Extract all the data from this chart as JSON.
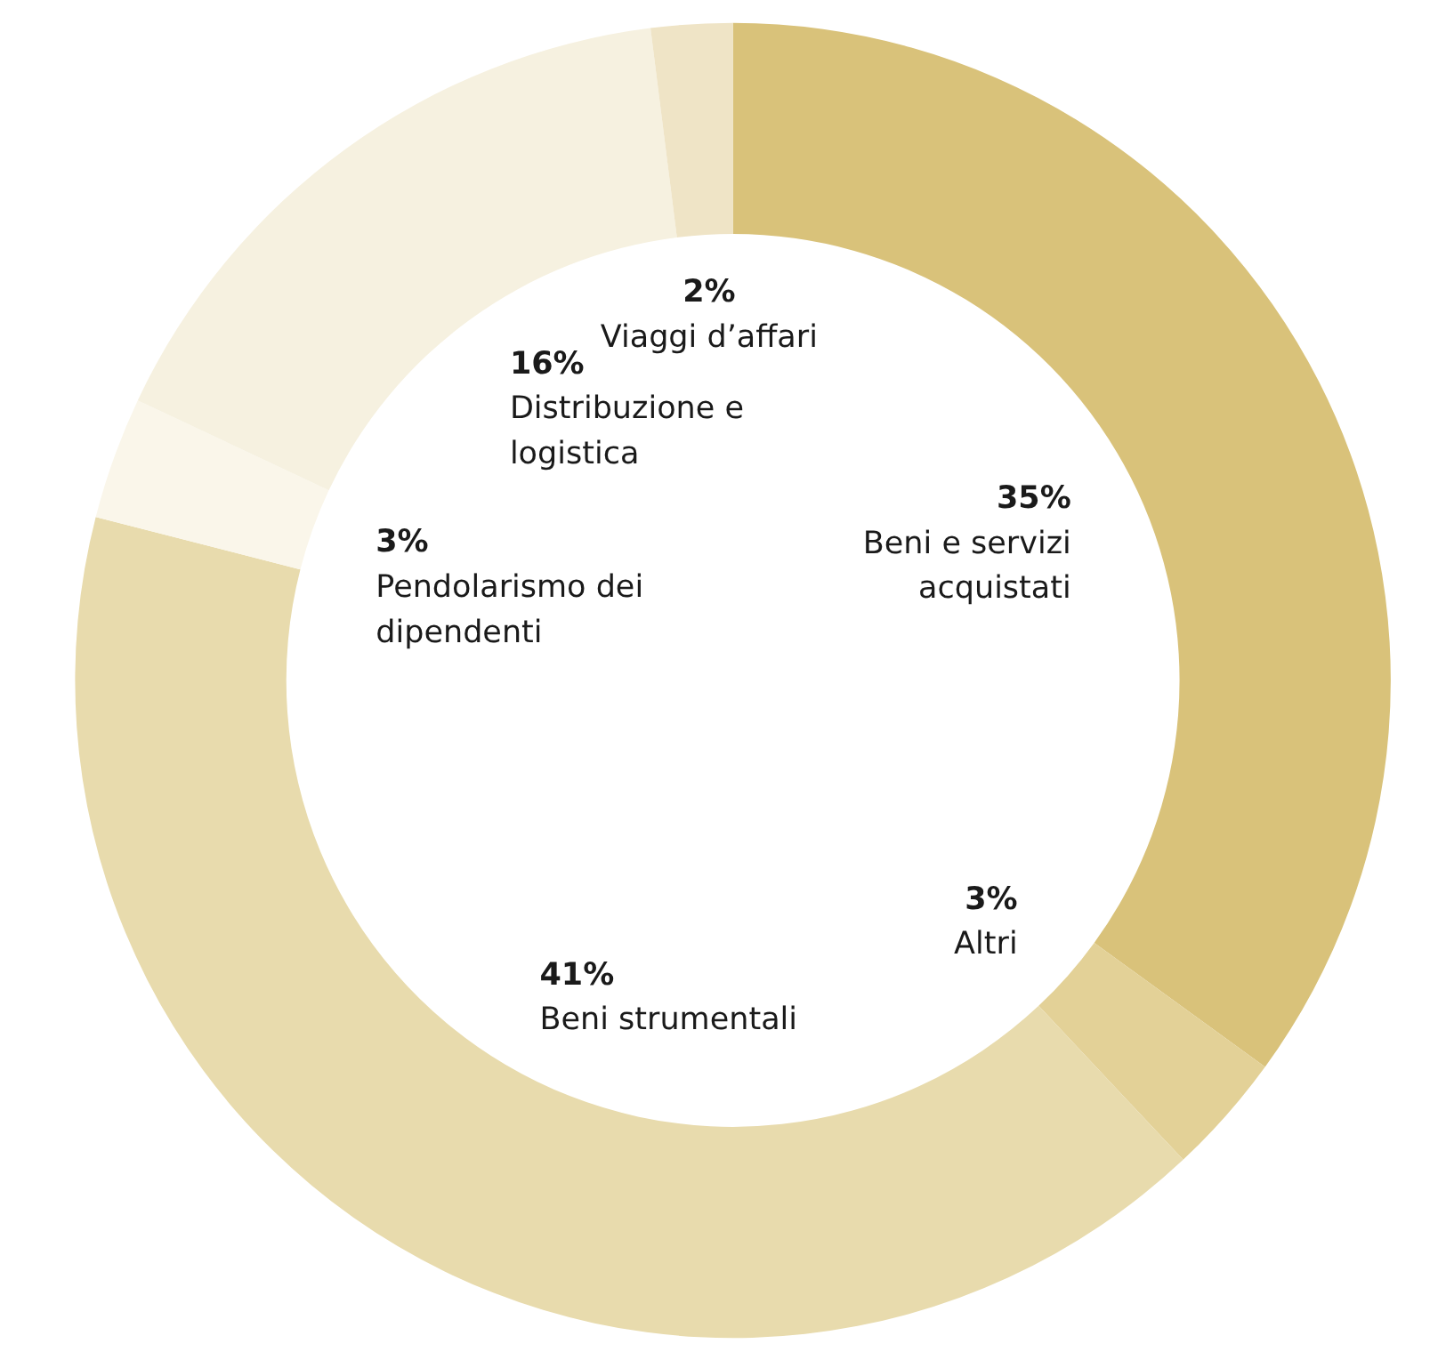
{
  "chart_data": {
    "type": "donut",
    "categories": [
      "Beni e servizi acquistati",
      "Altri",
      "Beni strumentali",
      "Pendolarismo dei dipendenti",
      "Distribuzione e logistica",
      "Viaggi d’affari"
    ],
    "values": [
      35,
      3,
      41,
      3,
      16,
      2
    ],
    "value_labels": [
      "35%",
      "3%",
      "41%",
      "3%",
      "16%",
      "2%"
    ],
    "colors": [
      "#d9c27a",
      "#e3d197",
      "#e8dbad",
      "#faf6ea",
      "#f6f1e0",
      "#efe4c6"
    ]
  }
}
